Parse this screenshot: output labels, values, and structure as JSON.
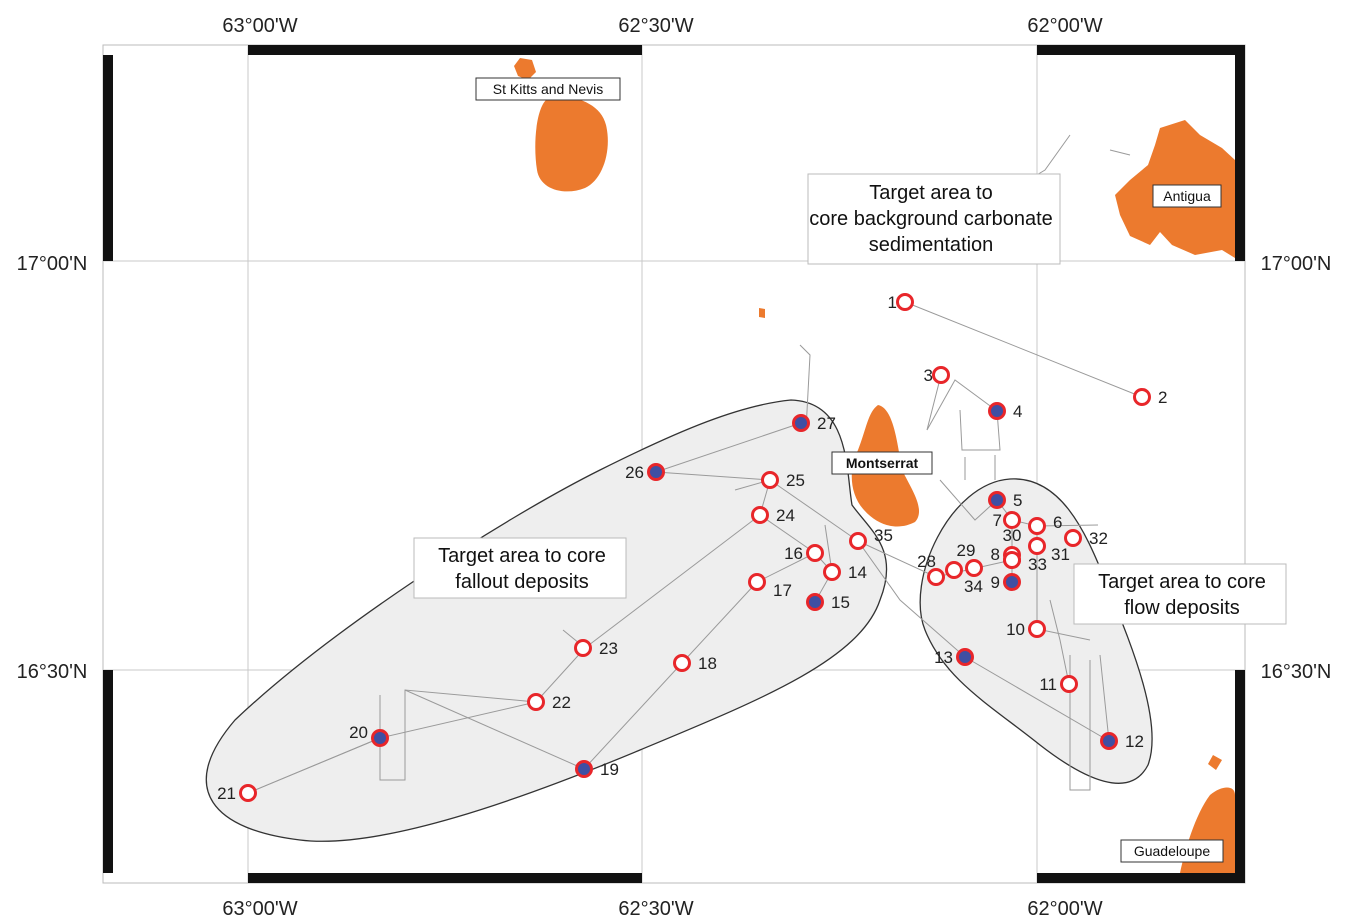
{
  "coordinates": {
    "top": [
      "63°00'W",
      "62°30'W",
      "62°00'W"
    ],
    "bottom": [
      "63°00'W",
      "62°30'W",
      "62°00'W"
    ],
    "left": [
      "17°00'N",
      "16°30'N"
    ],
    "right": [
      "17°00'N",
      "16°30'N"
    ]
  },
  "places": {
    "stkitts": "St Kitts and Nevis",
    "antigua": "Antigua",
    "montserrat": "Montserrat",
    "guadeloupe": "Guadeloupe"
  },
  "target_areas": {
    "background": [
      "Target area to",
      "core background carbonate",
      "sedimentation"
    ],
    "fallout": [
      "Target area to core",
      "fallout deposits"
    ],
    "flow": [
      "Target area to core",
      "flow deposits"
    ]
  },
  "colors": {
    "land": "#ec7a2e",
    "station_ring": "#e8262a",
    "station_fill": "#3f4fa3",
    "target_area_fill": "#eeeeee"
  },
  "stations": [
    {
      "id": "1",
      "filled": false
    },
    {
      "id": "2",
      "filled": false
    },
    {
      "id": "3",
      "filled": false
    },
    {
      "id": "4",
      "filled": true
    },
    {
      "id": "5",
      "filled": true
    },
    {
      "id": "6",
      "filled": false
    },
    {
      "id": "7",
      "filled": false
    },
    {
      "id": "8",
      "filled": false
    },
    {
      "id": "9",
      "filled": true
    },
    {
      "id": "10",
      "filled": false
    },
    {
      "id": "11",
      "filled": false
    },
    {
      "id": "12",
      "filled": true
    },
    {
      "id": "13",
      "filled": true
    },
    {
      "id": "14",
      "filled": false
    },
    {
      "id": "15",
      "filled": true
    },
    {
      "id": "16",
      "filled": false
    },
    {
      "id": "17",
      "filled": false
    },
    {
      "id": "18",
      "filled": false
    },
    {
      "id": "19",
      "filled": true
    },
    {
      "id": "20",
      "filled": true
    },
    {
      "id": "21",
      "filled": false
    },
    {
      "id": "22",
      "filled": false
    },
    {
      "id": "23",
      "filled": false
    },
    {
      "id": "24",
      "filled": false
    },
    {
      "id": "25",
      "filled": false
    },
    {
      "id": "26",
      "filled": true
    },
    {
      "id": "27",
      "filled": true
    },
    {
      "id": "28",
      "filled": false
    },
    {
      "id": "29",
      "filled": false
    },
    {
      "id": "30",
      "filled": false
    },
    {
      "id": "31",
      "filled": false
    },
    {
      "id": "32",
      "filled": false
    },
    {
      "id": "33",
      "filled": false
    },
    {
      "id": "34",
      "filled": false
    },
    {
      "id": "35",
      "filled": false
    }
  ]
}
